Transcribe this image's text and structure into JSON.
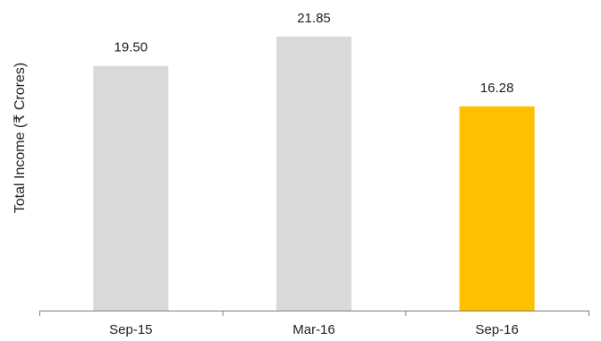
{
  "chart_data": {
    "type": "bar",
    "title": "",
    "xlabel": "",
    "ylabel": "Total Income (₹ Crores)",
    "categories": [
      "Sep-15",
      "Mar-16",
      "Sep-16"
    ],
    "values": [
      19.5,
      21.85,
      16.28
    ],
    "data_labels": [
      "19.50",
      "21.85",
      "16.28"
    ],
    "bar_colors": [
      "#d9d9d9",
      "#d9d9d9",
      "#ffc000"
    ],
    "ylim": [
      0,
      24.76
    ],
    "grid": false,
    "legend": "none"
  }
}
